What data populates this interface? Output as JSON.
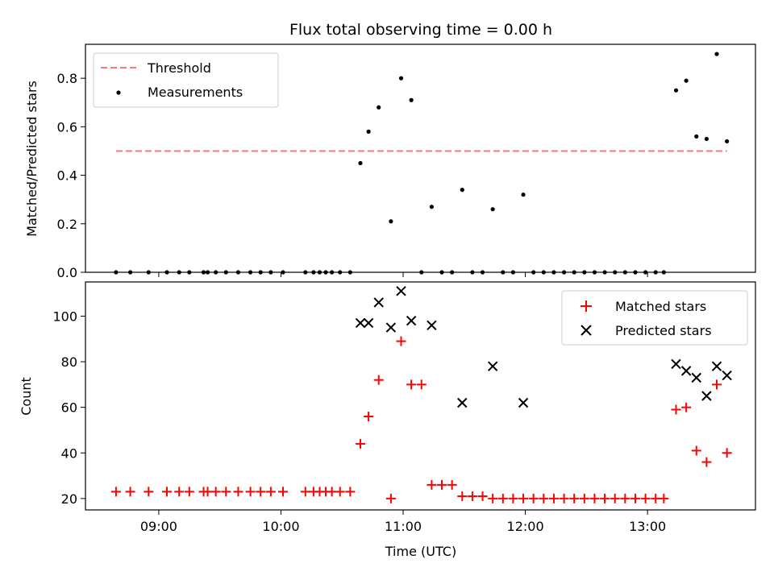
{
  "chart_data": [
    {
      "type": "scatter",
      "title": "Flux total observing time = 0.00 h",
      "xlabel": "",
      "ylabel": "Matched/Predicted stars",
      "ylim": [
        0,
        0.94
      ],
      "yticks": [
        0.0,
        0.2,
        0.4,
        0.6,
        0.8
      ],
      "ytick_labels": [
        "0.0",
        "0.2",
        "0.4",
        "0.6",
        "0.8"
      ],
      "legend": {
        "position": "top-left",
        "entries": [
          "Threshold",
          "Measurements"
        ]
      },
      "colors": {
        "threshold": "#ff7777",
        "measurements": "#000000"
      },
      "series": [
        {
          "name": "Threshold",
          "kind": "line",
          "x": [
            "08:39",
            "13:39"
          ],
          "y": [
            0.5,
            0.5
          ]
        },
        {
          "name": "Measurements",
          "kind": "scatter",
          "x": [
            "08:39",
            "08:46",
            "08:55",
            "09:04",
            "09:10",
            "09:15",
            "09:22",
            "09:24",
            "09:28",
            "09:33",
            "09:39",
            "09:45",
            "09:50",
            "09:55",
            "10:01",
            "10:12",
            "10:16",
            "10:19",
            "10:22",
            "10:25",
            "10:29",
            "10:34",
            "10:39",
            "10:43",
            "10:48",
            "10:54",
            "10:59",
            "11:04",
            "11:09",
            "11:14",
            "11:19",
            "11:24",
            "11:29",
            "11:34",
            "11:39",
            "11:44",
            "11:49",
            "11:54",
            "11:59",
            "12:04",
            "12:09",
            "12:14",
            "12:19",
            "12:24",
            "12:29",
            "12:34",
            "12:39",
            "12:44",
            "12:49",
            "12:54",
            "12:59",
            "13:04",
            "13:08",
            "13:14",
            "13:19",
            "13:24",
            "13:29",
            "13:34",
            "13:39"
          ],
          "y": [
            0,
            0,
            0,
            0,
            0,
            0,
            0,
            0,
            0,
            0,
            0,
            0,
            0,
            0,
            0,
            0,
            0,
            0,
            0,
            0,
            0,
            0,
            0.45,
            0.58,
            0.68,
            0.21,
            0.8,
            0.71,
            0,
            0.27,
            0,
            0,
            0.34,
            0,
            0,
            0.26,
            0,
            0,
            0.32,
            0,
            0,
            0,
            0,
            0,
            0,
            0,
            0,
            0,
            0,
            0,
            0,
            0,
            0,
            0.75,
            0.79,
            0.56,
            0.55,
            0.9,
            0.54
          ]
        }
      ]
    },
    {
      "type": "scatter",
      "title": "",
      "xlabel": "Time (UTC)",
      "ylabel": "Count",
      "xlim": [
        "08:24",
        "13:53"
      ],
      "ylim": [
        15,
        115
      ],
      "xticks": [
        "09:00",
        "10:00",
        "11:00",
        "12:00",
        "13:00"
      ],
      "yticks": [
        20,
        40,
        60,
        80,
        100
      ],
      "legend": {
        "position": "top-right",
        "entries": [
          "Matched stars",
          "Predicted stars"
        ]
      },
      "colors": {
        "matched": "#ff0000",
        "predicted": "#000000"
      },
      "series": [
        {
          "name": "Matched stars",
          "marker": "+",
          "x": [
            "08:39",
            "08:46",
            "08:55",
            "09:04",
            "09:10",
            "09:15",
            "09:22",
            "09:24",
            "09:28",
            "09:33",
            "09:39",
            "09:45",
            "09:50",
            "09:55",
            "10:01",
            "10:12",
            "10:16",
            "10:19",
            "10:22",
            "10:25",
            "10:29",
            "10:34",
            "10:39",
            "10:43",
            "10:48",
            "10:54",
            "10:59",
            "11:04",
            "11:09",
            "11:14",
            "11:19",
            "11:24",
            "11:29",
            "11:34",
            "11:39",
            "11:44",
            "11:49",
            "11:54",
            "11:59",
            "12:04",
            "12:09",
            "12:14",
            "12:19",
            "12:24",
            "12:29",
            "12:34",
            "12:39",
            "12:44",
            "12:49",
            "12:54",
            "12:59",
            "13:04",
            "13:08",
            "13:14",
            "13:19",
            "13:24",
            "13:29",
            "13:34",
            "13:39"
          ],
          "y": [
            23,
            23,
            23,
            23,
            23,
            23,
            23,
            23,
            23,
            23,
            23,
            23,
            23,
            23,
            23,
            23,
            23,
            23,
            23,
            23,
            23,
            23,
            44,
            56,
            72,
            20,
            89,
            70,
            70,
            26,
            26,
            26,
            21,
            21,
            21,
            20,
            20,
            20,
            20,
            20,
            20,
            20,
            20,
            20,
            20,
            20,
            20,
            20,
            20,
            20,
            20,
            20,
            20,
            59,
            60,
            41,
            36,
            70,
            40
          ]
        },
        {
          "name": "Predicted stars",
          "marker": "x",
          "x": [
            "10:39",
            "10:43",
            "10:48",
            "10:54",
            "10:59",
            "11:04",
            "11:14",
            "11:29",
            "11:44",
            "11:59",
            "13:14",
            "13:19",
            "13:24",
            "13:29",
            "13:34",
            "13:39"
          ],
          "y": [
            97,
            97,
            106,
            95,
            111,
            98,
            96,
            62,
            78,
            62,
            79,
            76,
            73,
            65,
            78,
            74
          ]
        }
      ]
    }
  ]
}
